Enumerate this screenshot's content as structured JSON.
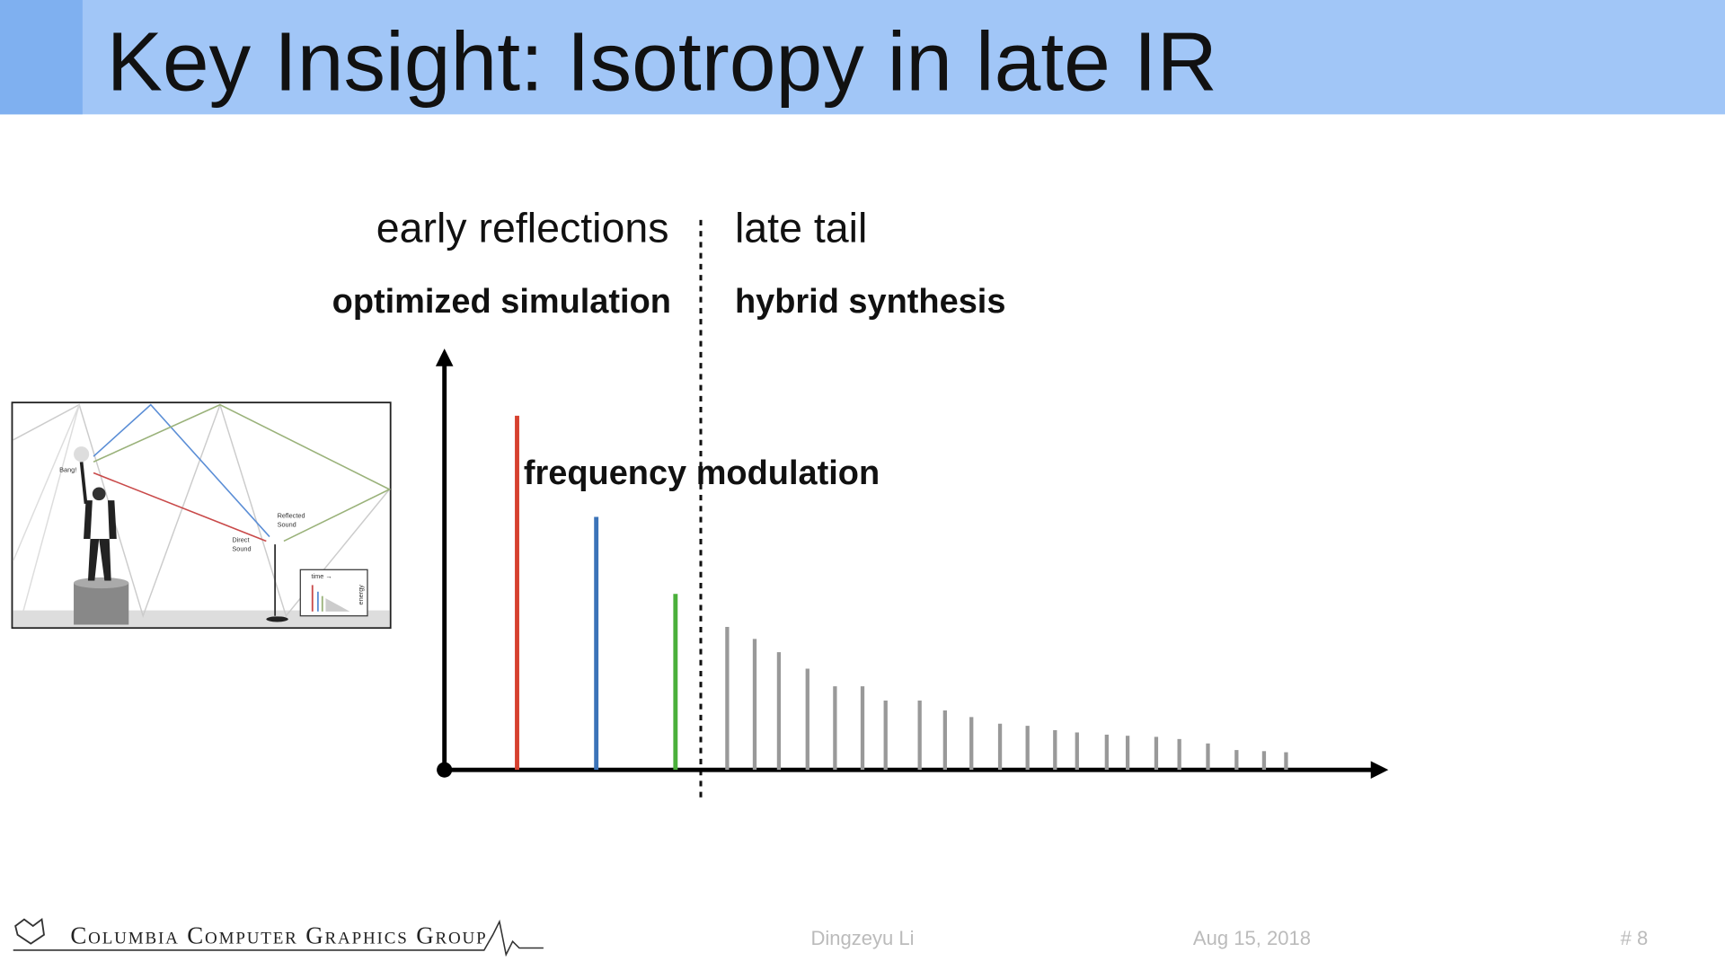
{
  "header": {
    "title": "Key Insight: Isotropy in late IR"
  },
  "diagram": {
    "left_heading": "early reflections",
    "right_heading": "late tail",
    "left_method": "optimized simulation",
    "right_method": "hybrid synthesis",
    "annotation": "frequency modulation",
    "inset": {
      "bang": "Bang!",
      "reflected": [
        "Reflected",
        "Sound"
      ],
      "direct": [
        "Direct",
        "Sound"
      ],
      "time": "time →",
      "energy": "energy"
    }
  },
  "footer": {
    "group": "Columbia Computer Graphics Group",
    "author": "Dingzeyu Li",
    "date": "Aug 15, 2018",
    "page": "# 8"
  }
}
